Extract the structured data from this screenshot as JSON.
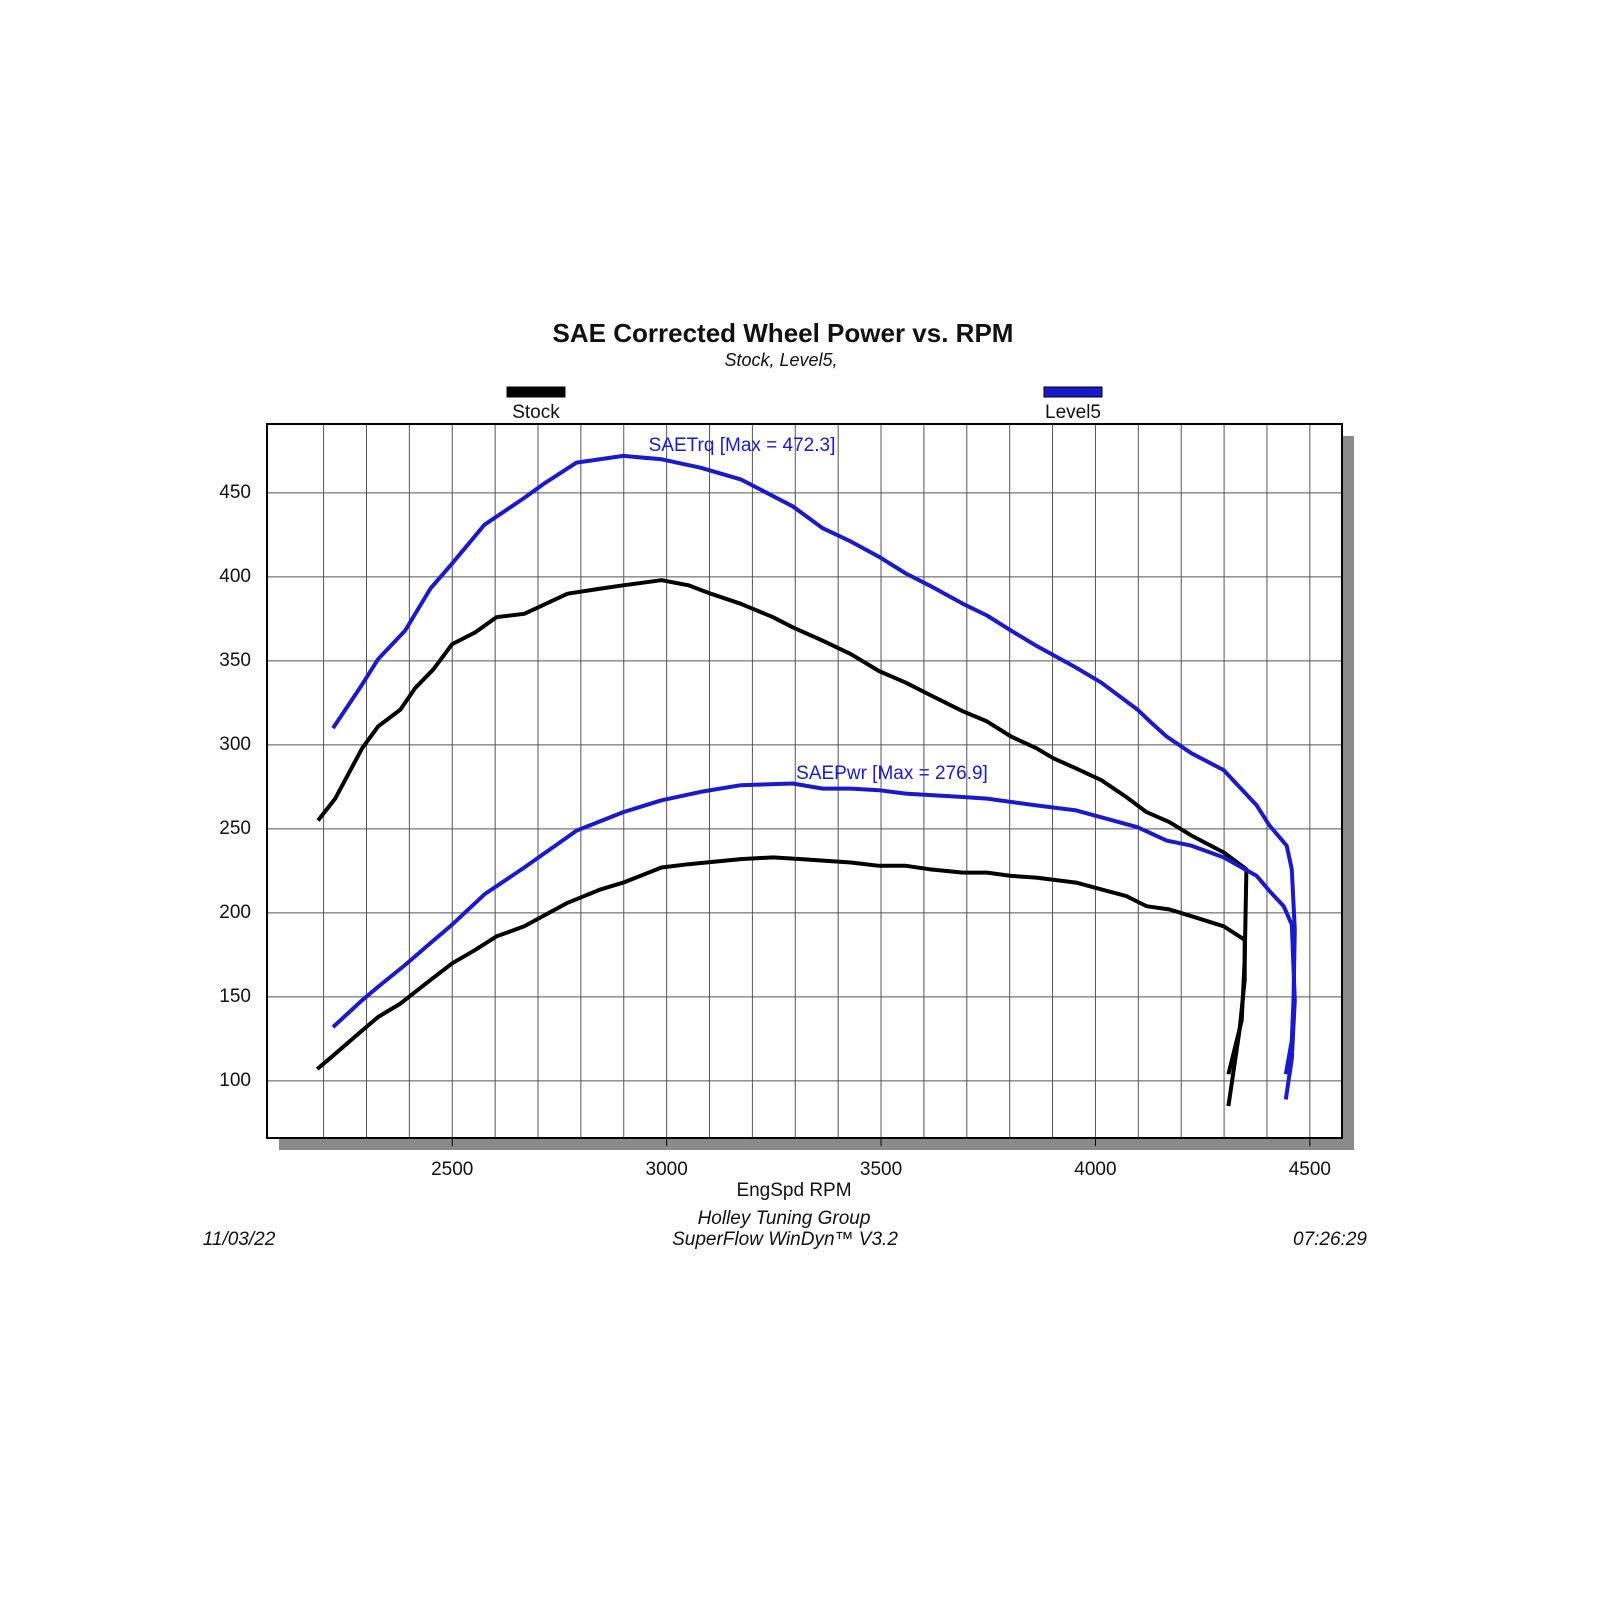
{
  "chart_data": {
    "type": "line",
    "title": "SAE Corrected Wheel Power vs. RPM",
    "subtitle": "Stock, Level5,",
    "xlabel": "EngSpd RPM",
    "xlim": [
      2068,
      4575
    ],
    "xticks": [
      2500,
      3000,
      3500,
      4000,
      4500
    ],
    "xgrid": [
      2200,
      2300,
      2400,
      2500,
      2600,
      2700,
      2800,
      2900,
      3000,
      3100,
      3200,
      3300,
      3400,
      3500,
      3600,
      3700,
      3800,
      3900,
      4000,
      4100,
      4200,
      4300,
      4400,
      4500
    ],
    "ylim": [
      66,
      491
    ],
    "yticks": [
      100,
      150,
      200,
      250,
      300,
      350,
      400,
      450
    ],
    "grid": true,
    "series": [
      {
        "name": "Stock",
        "color": "#000000",
        "curves": [
          {
            "x": [
              2187,
              2227,
              2290,
              2327,
              2379,
              2414,
              2456,
              2500,
              2554,
              2603,
              2668,
              2769,
              2846,
              2899,
              2988,
              3051,
              3103,
              3173,
              3248,
              3294,
              3364,
              3430,
              3495,
              3558,
              3612,
              3691,
              3747,
              3803,
              3862,
              3902,
              3955,
              4014,
              4072,
              4119,
              4173,
              4224,
              4299,
              4352,
              4348,
              4341,
              4310
            ],
            "values": [
              255,
              268,
              298,
              311,
              321,
              334,
              345,
              360,
              367,
              376,
              378,
              390,
              393,
              395,
              398,
              395,
              390,
              384,
              376,
              370,
              362,
              354,
              344,
              337,
              330,
              320,
              314,
              305,
              298,
              292,
              286,
              279,
              269,
              260,
              254,
              246,
              236,
              226,
              172,
              136,
              104
            ]
          },
          {
            "x": [
              2185,
              2222,
              2290,
              2327,
              2379,
              2449,
              2500,
              2554,
              2603,
              2668,
              2769,
              2846,
              2899,
              2988,
              3051,
              3173,
              3248,
              3313,
              3430,
              3495,
              3558,
              3612,
              3691,
              3747,
              3803,
              3862,
              3955,
              4014,
              4072,
              4119,
              4173,
              4224,
              4299,
              4348,
              4348,
              4336,
              4310
            ],
            "values": [
              107,
              115,
              130,
              138,
              146,
              160,
              170,
              178,
              186,
              192,
              206,
              214,
              218,
              227,
              229,
              232,
              233,
              232,
              230,
              228,
              228,
              226,
              224,
              224,
              222,
              221,
              218,
              214,
              210,
              204,
              202,
              198,
              192,
              184,
              160,
              130,
              85
            ]
          }
        ]
      },
      {
        "name": "Level5",
        "color": "#1a1acc",
        "curves": [
          {
            "x": [
              2222,
              2285,
              2327,
              2390,
              2449,
              2500,
              2575,
              2668,
              2717,
              2790,
              2899,
              2988,
              3079,
              3173,
              3294,
              3364,
              3430,
              3495,
              3558,
              3612,
              3691,
              3747,
              3803,
              3862,
              3955,
              4014,
              4098,
              4131,
              4166,
              4224,
              4299,
              4376,
              4406,
              4446,
              4458,
              4465,
              4462,
              4458,
              4444
            ],
            "values": [
              310,
              334,
              351,
              368,
              393,
              408,
              431,
              447,
              456,
              468,
              472,
              470,
              465,
              458,
              442,
              429,
              421,
              412,
              402,
              395,
              384,
              377,
              368,
              359,
              346,
              337,
              321,
              313,
              305,
              295,
              285,
              264,
              252,
              240,
              226,
              190,
              148,
              124,
              104
            ]
          },
          {
            "x": [
              2222,
              2290,
              2327,
              2390,
              2449,
              2500,
              2575,
              2668,
              2790,
              2899,
              2988,
              3079,
              3173,
              3294,
              3364,
              3430,
              3495,
              3558,
              3691,
              3747,
              3862,
              3955,
              4098,
              4166,
              4224,
              4299,
              4376,
              4406,
              4439,
              4458,
              4465,
              4458,
              4444
            ],
            "values": [
              132,
              148,
              156,
              169,
              182,
              193,
              211,
              227,
              249,
              260,
              267,
              272,
              276,
              277,
              274,
              274,
              273,
              271,
              269,
              268,
              264,
              261,
              251,
              243,
              240,
              233,
              222,
              213,
              204,
              193,
              148,
              113,
              89
            ]
          }
        ]
      }
    ],
    "annotations": [
      {
        "text": "SAETrq [Max = 472.3]",
        "color": "#1a1acc"
      },
      {
        "text": "SAEPwr [Max = 276.9]",
        "color": "#1a1acc"
      }
    ],
    "footer": [
      "Holley Tuning Group",
      "SuperFlow WinDyn™ V3.2"
    ],
    "date": "11/03/22",
    "time": "07:26:29"
  }
}
